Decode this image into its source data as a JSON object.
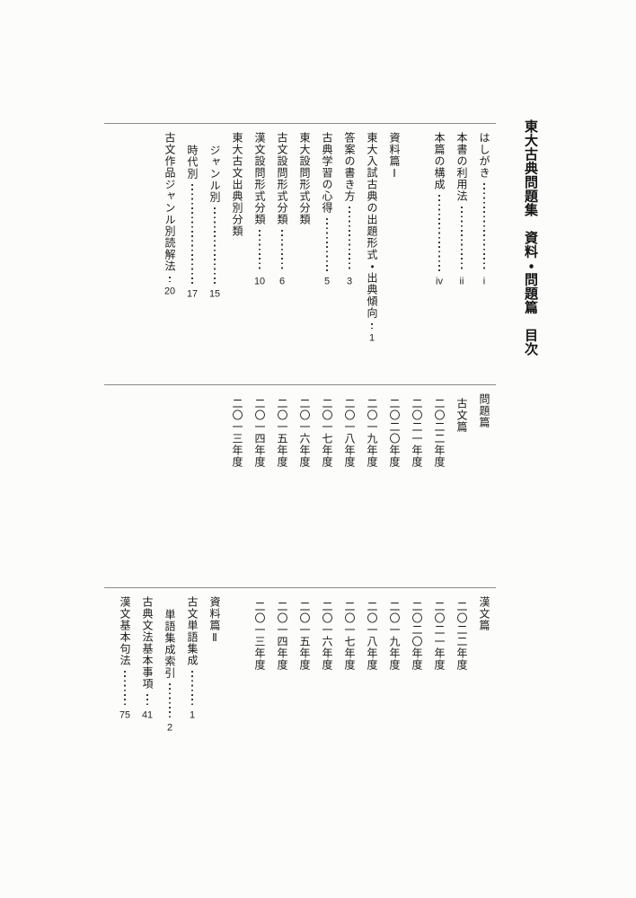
{
  "title": "東大古典問題集　資料・問題篇　目次",
  "sections": [
    {
      "name": "front-matter-and-shiryo-1",
      "entries": [
        {
          "label": "はしがき",
          "page": "i",
          "level": 0
        },
        {
          "label": "本書の利用法",
          "page": "ii",
          "level": 0
        },
        {
          "label": "本篇の構成",
          "page": "iv",
          "level": 0
        },
        {
          "label": "資料篇Ⅰ",
          "heading": true,
          "gap": true,
          "level": 0
        },
        {
          "label": "東大入試古典の出題形式・出典傾向",
          "page": "1",
          "tall": true,
          "level": 0
        },
        {
          "label": "答案の書き方",
          "page": "3",
          "level": 0
        },
        {
          "label": "古典学習の心得",
          "page": "5",
          "level": 0
        },
        {
          "label": "東大設問形式分類",
          "heading": true,
          "level": 0
        },
        {
          "label": "古文設問形式分類",
          "page": "6",
          "level": 0
        },
        {
          "label": "漢文設問形式分類",
          "page": "10",
          "level": 0
        },
        {
          "label": "東大古文出典別分類",
          "heading": true,
          "level": 0
        },
        {
          "label": "ジャンル別",
          "page": "15",
          "level": 2
        },
        {
          "label": "時代別",
          "page": "17",
          "level": 2
        },
        {
          "label": "古文作品ジャンル別読解法",
          "page": "20",
          "level": 0
        }
      ]
    },
    {
      "name": "mondai-hen-kobun",
      "entries": [
        {
          "label": "問題篇",
          "heading": true,
          "level": 0
        },
        {
          "label": "古文篇",
          "heading": true,
          "level": 1
        },
        {
          "label": "二〇二二年度",
          "level": 1
        },
        {
          "label": "二〇二一年度",
          "level": 1
        },
        {
          "label": "二〇二〇年度",
          "level": 1
        },
        {
          "label": "二〇一九年度",
          "level": 1
        },
        {
          "label": "二〇一八年度",
          "level": 1
        },
        {
          "label": "二〇一七年度",
          "level": 1
        },
        {
          "label": "二〇一六年度",
          "level": 1
        },
        {
          "label": "二〇一五年度",
          "level": 1
        },
        {
          "label": "二〇一四年度",
          "level": 1
        },
        {
          "label": "二〇一三年度",
          "level": 1
        }
      ]
    },
    {
      "name": "kanbun-and-shiryo-2",
      "entries": [
        {
          "label": "漢文篇",
          "heading": true,
          "level": 0
        },
        {
          "label": "二〇二二年度",
          "level": 1
        },
        {
          "label": "二〇二一年度",
          "level": 1
        },
        {
          "label": "二〇二〇年度",
          "level": 1
        },
        {
          "label": "二〇一九年度",
          "level": 1
        },
        {
          "label": "二〇一八年度",
          "level": 1
        },
        {
          "label": "二〇一七年度",
          "level": 1
        },
        {
          "label": "二〇一六年度",
          "level": 1
        },
        {
          "label": "二〇一五年度",
          "level": 1
        },
        {
          "label": "二〇一四年度",
          "level": 1
        },
        {
          "label": "二〇一三年度",
          "level": 1
        },
        {
          "label": "資料篇Ⅱ",
          "heading": true,
          "gap": true,
          "level": 0
        },
        {
          "label": "古文単語集成",
          "page": "1",
          "level": 0
        },
        {
          "label": "単語集成索引",
          "page": "2",
          "level": 2
        },
        {
          "label": "古典文法基本事項",
          "page": "41",
          "level": 0
        },
        {
          "label": "漢文基本句法",
          "page": "75",
          "level": 0
        }
      ]
    }
  ]
}
